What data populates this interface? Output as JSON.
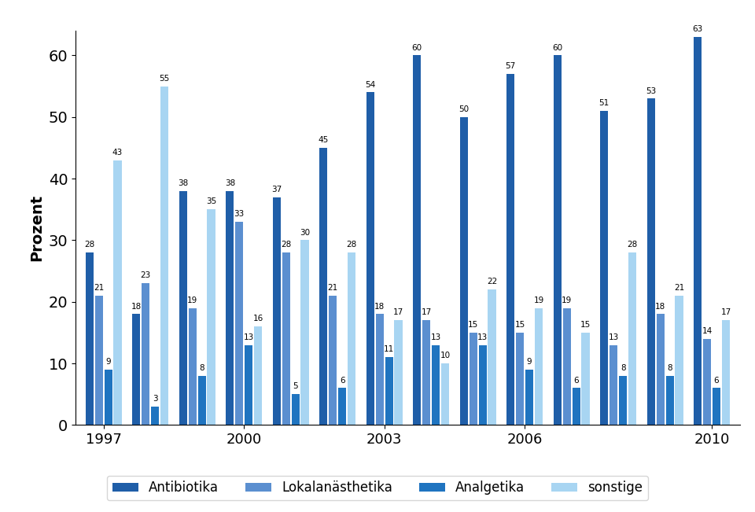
{
  "chart_data": {
    "type": "bar",
    "y_label": "Prozent",
    "categories": [
      "1997",
      null,
      null,
      "2000",
      null,
      null,
      "2003",
      null,
      null,
      "2006",
      null,
      null,
      null,
      "2010"
    ],
    "series": [
      {
        "name": "Antibiotika",
        "color": "#1f5ea8",
        "values": [
          28,
          18,
          38,
          38,
          37,
          45,
          54,
          60,
          50,
          57,
          60,
          51,
          53,
          63
        ]
      },
      {
        "name": "Lokalanästhetika",
        "color": "#5b8fd0",
        "values": [
          21,
          23,
          19,
          33,
          28,
          21,
          18,
          17,
          15,
          15,
          19,
          13,
          18,
          14
        ]
      },
      {
        "name": "Analgetika",
        "color": "#1f74c0",
        "values": [
          9,
          3,
          8,
          13,
          5,
          6,
          11,
          13,
          13,
          9,
          6,
          8,
          8,
          6
        ]
      },
      {
        "name": "sonstige",
        "color": "#a8d5f2",
        "values": [
          43,
          55,
          35,
          16,
          30,
          28,
          17,
          10,
          22,
          19,
          15,
          28,
          21,
          17
        ]
      }
    ],
    "ylim": [
      0,
      64
    ],
    "yticks": [
      0,
      10,
      20,
      30,
      40,
      50,
      60
    ],
    "grid": false,
    "legend": "lower center",
    "data_labels": true
  }
}
